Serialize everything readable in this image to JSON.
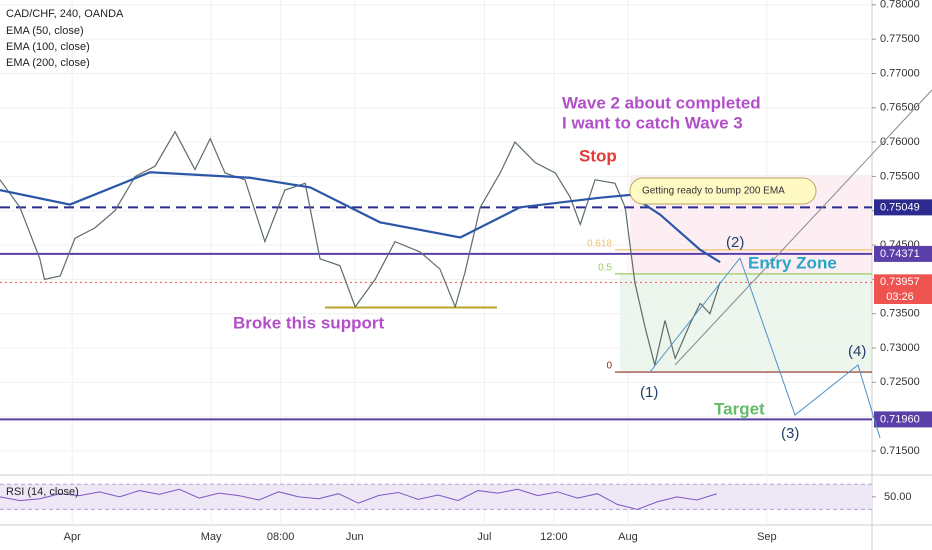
{
  "chart_data": {
    "type": "line",
    "annotations": {
      "wave_title_1": "Wave 2 about completed",
      "wave_title_2": "I want to catch Wave 3",
      "stop": "Stop",
      "callout": "Getting ready to  bump 200 EMA",
      "entry": "Entry Zone",
      "target": "Target",
      "support": "Broke this support",
      "wave1": "(1)",
      "wave2": "(2)",
      "wave3": "(3)",
      "wave4": "(4)",
      "countdown": "03:26"
    },
    "header_extra": [
      "EMA (50, close)",
      "EMA (100, close)"
    ],
    "series": [
      {
        "name": "CAD/CHF, 240, OANDA",
        "color": "#5d6d6a",
        "x": [
          15.4,
          19.7,
          24,
          25,
          28.4,
          31.6,
          35.9,
          40.2,
          44.6,
          48.9,
          53.2,
          57.5,
          60.8,
          64,
          68.3,
          72.6,
          76.9,
          81.3,
          84.5,
          88.8,
          92.1,
          96.4,
          100.7,
          106.1,
          110.4,
          113.7,
          115.8,
          119.1,
          123.4,
          126.6,
          131,
          135.3,
          138.5,
          140.7,
          143.9,
          148.2,
          150.4,
          152.5,
          154.7,
          156.8,
          159,
          161.2,
          164.4,
          166.6,
          168.7,
          170.9
        ],
        "values": [
          0.7545,
          0.7505,
          0.743,
          0.74,
          0.7405,
          0.746,
          0.7475,
          0.75,
          0.755,
          0.7565,
          0.7615,
          0.756,
          0.7605,
          0.7555,
          0.7545,
          0.7455,
          0.753,
          0.754,
          0.743,
          0.742,
          0.736,
          0.74,
          0.7455,
          0.744,
          0.7415,
          0.736,
          0.741,
          0.7505,
          0.7555,
          0.76,
          0.757,
          0.7555,
          0.752,
          0.748,
          0.7545,
          0.754,
          0.7505,
          0.7395,
          0.733,
          0.7275,
          0.734,
          0.7285,
          0.7335,
          0.7365,
          0.735,
          0.7396
        ]
      },
      {
        "name": "EMA (200, close)",
        "color": "#2c56a8",
        "x": [
          15.4,
          30.5,
          47.8,
          69.4,
          82.4,
          97.5,
          114.8,
          127.7,
          145,
          151.5,
          158,
          166.6,
          170.9
        ],
        "values": [
          0.753,
          0.7509,
          0.7556,
          0.7548,
          0.7534,
          0.7483,
          0.7461,
          0.7505,
          0.7519,
          0.7523,
          0.7494,
          0.7443,
          0.7425
        ]
      }
    ],
    "xlim": [
      15.4,
      203.7
    ],
    "xticks": [
      {
        "value": 31,
        "label": "Apr"
      },
      {
        "value": 61,
        "label": "May"
      },
      {
        "value": 76,
        "label": "08:00"
      },
      {
        "value": 92,
        "label": "Jun"
      },
      {
        "value": 120,
        "label": "Jul"
      },
      {
        "value": 135,
        "label": "12:00"
      },
      {
        "value": 151,
        "label": "Aug"
      },
      {
        "value": 181,
        "label": "Sep"
      }
    ],
    "ylim": [
      0.7115,
      0.7807
    ],
    "yticks": [
      {
        "value": 0.715,
        "label": "0.71500"
      },
      {
        "value": 0.72,
        "label": "0.72000"
      },
      {
        "value": 0.725,
        "label": "0.72500"
      },
      {
        "value": 0.73,
        "label": "0.73000"
      },
      {
        "value": 0.735,
        "label": "0.73500"
      },
      {
        "value": 0.74,
        "label": "0.74000"
      },
      {
        "value": 0.745,
        "label": "0.74500"
      },
      {
        "value": 0.75,
        "label": "0.75000"
      },
      {
        "value": 0.755,
        "label": "0.75500"
      },
      {
        "value": 0.76,
        "label": "0.76000"
      },
      {
        "value": 0.765,
        "label": "0.76500"
      },
      {
        "value": 0.77,
        "label": "0.77000"
      },
      {
        "value": 0.775,
        "label": "0.77500"
      },
      {
        "value": 0.78,
        "label": "0.78000"
      }
    ],
    "grid": true,
    "levels": [
      {
        "value": 0.75049,
        "label": "0.75049",
        "color": "#2b2b8f",
        "style": "dashed"
      },
      {
        "value": 0.74371,
        "label": "0.74371",
        "color": "#5b3fa8",
        "style": "solid"
      },
      {
        "value": 0.7196,
        "label": "0.71960",
        "color": "#5b3fa8",
        "style": "solid"
      },
      {
        "value": 0.73957,
        "label": "0.73957",
        "color": "#ef5350",
        "style": "dotted"
      }
    ],
    "support_level": 0.7359,
    "fib": [
      {
        "ratio": 0.618,
        "price": 0.7443,
        "color": "#f2c46d"
      },
      {
        "ratio": 0.5,
        "price": 0.7408,
        "color": "#9ccc65"
      },
      {
        "ratio": 0,
        "price": 0.7265,
        "color": "#8d2f1e"
      }
    ],
    "rsi": {
      "name": "RSI (14, close)",
      "color": "#7e57c2",
      "ylim": [
        10,
        80
      ],
      "band": [
        30,
        70
      ],
      "yticks": [
        {
          "value": 50,
          "label": "50.00"
        }
      ],
      "x": [
        15.4,
        19.7,
        24,
        28.3,
        32.6,
        36.9,
        41.2,
        45.5,
        49.8,
        54.1,
        58.4,
        62.7,
        67,
        71.3,
        75.6,
        79.9,
        84.2,
        88.5,
        92.8,
        97.1,
        101.4,
        105.7,
        110,
        114.3,
        118.6,
        122.9,
        127.2,
        131.5,
        135.8,
        140.1,
        144.4,
        148.7,
        153,
        157.3,
        161.6,
        165.9,
        170.2
      ],
      "values": [
        50,
        44,
        47,
        55,
        52,
        58,
        50,
        60,
        54,
        62,
        48,
        56,
        52,
        45,
        58,
        50,
        47,
        55,
        40,
        52,
        57,
        46,
        53,
        44,
        60,
        56,
        62,
        52,
        58,
        48,
        55,
        38,
        30,
        42,
        50,
        45,
        55
      ]
    }
  }
}
